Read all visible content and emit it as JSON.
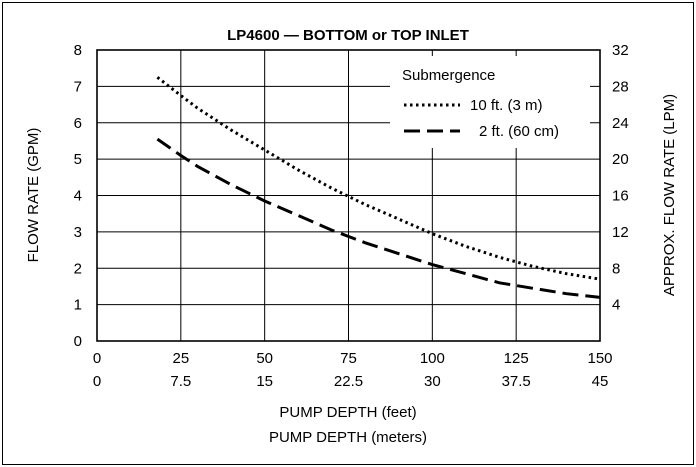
{
  "chart_data": {
    "type": "line",
    "title": "LP4600 — BOTTOM or TOP INLET",
    "x_primary": {
      "label": "PUMP DEPTH (feet)",
      "ticks": [
        0,
        25,
        50,
        75,
        100,
        125,
        150
      ],
      "range": [
        0,
        150
      ]
    },
    "x_secondary": {
      "label": "PUMP DEPTH (meters)",
      "ticks": [
        "0",
        "7.5",
        "15",
        "22.5",
        "30",
        "37.5",
        "45"
      ]
    },
    "y_primary": {
      "label": "FLOW RATE (GPM)",
      "ticks": [
        0,
        1,
        2,
        3,
        4,
        5,
        6,
        7,
        8
      ],
      "range": [
        0,
        8
      ]
    },
    "y_secondary": {
      "label": "APPROX. FLOW RATE (LPM)",
      "ticks": [
        4,
        8,
        12,
        16,
        20,
        24,
        28,
        32
      ]
    },
    "grid": true,
    "legend": {
      "title": "Submergence",
      "placement": "top-right"
    },
    "series": [
      {
        "name": "10 ft. (3 m)",
        "style": "dotted",
        "x": [
          18,
          25,
          30,
          40,
          50,
          60,
          70,
          80,
          90,
          100,
          110,
          120,
          130,
          140,
          150
        ],
        "y": [
          7.25,
          6.75,
          6.4,
          5.8,
          5.25,
          4.7,
          4.2,
          3.75,
          3.35,
          2.95,
          2.6,
          2.3,
          2.05,
          1.85,
          1.7
        ]
      },
      {
        "name": "2 ft. (60 cm)",
        "style": "dashed",
        "x": [
          18,
          25,
          30,
          40,
          50,
          60,
          70,
          80,
          90,
          100,
          110,
          120,
          130,
          140,
          150
        ],
        "y": [
          5.55,
          5.1,
          4.8,
          4.3,
          3.85,
          3.45,
          3.05,
          2.7,
          2.4,
          2.1,
          1.85,
          1.6,
          1.45,
          1.3,
          1.2
        ]
      }
    ]
  }
}
